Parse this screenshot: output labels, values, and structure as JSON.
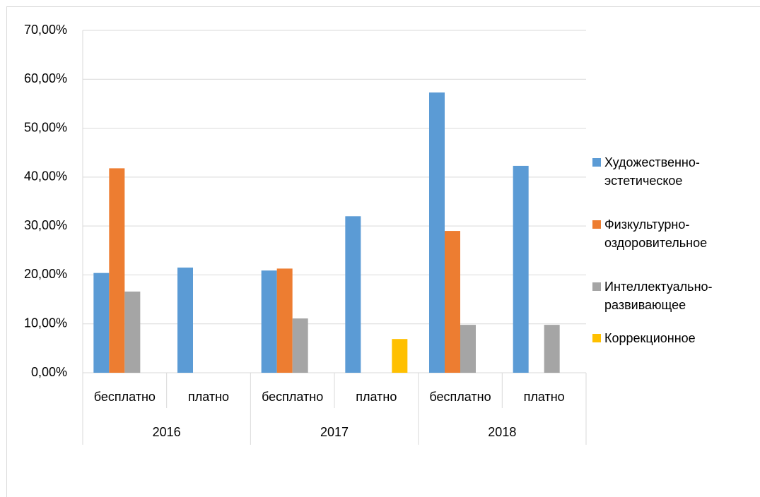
{
  "chart_data": {
    "type": "bar",
    "categories": [
      "бесплатно",
      "платно",
      "бесплатно",
      "платно",
      "бесплатно",
      "платно"
    ],
    "groups": [
      "2016",
      "2017",
      "2018"
    ],
    "series": [
      {
        "name": "Художественно-эстетическое",
        "color": "#5b9bd5",
        "values": [
          20.4,
          21.5,
          20.9,
          32.0,
          57.3,
          42.3
        ]
      },
      {
        "name": "Физкультурно-оздоровительное",
        "color": "#ed7d31",
        "values": [
          41.8,
          null,
          21.3,
          null,
          29.0,
          null
        ]
      },
      {
        "name": "Интеллектуально-развивающее",
        "color": "#a5a5a5",
        "values": [
          16.6,
          null,
          11.1,
          null,
          9.8,
          9.8
        ]
      },
      {
        "name": "Коррекционное",
        "color": "#ffc000",
        "values": [
          null,
          null,
          null,
          6.9,
          null,
          null
        ]
      }
    ],
    "ylim": [
      0,
      70
    ],
    "yticks": [
      {
        "value": 0,
        "label": "0,00%"
      },
      {
        "value": 10,
        "label": "10,00%"
      },
      {
        "value": 20,
        "label": "20,00%"
      },
      {
        "value": 30,
        "label": "30,00%"
      },
      {
        "value": 40,
        "label": "40,00%"
      },
      {
        "value": 50,
        "label": "50,00%"
      },
      {
        "value": 60,
        "label": "60,00%"
      },
      {
        "value": 70,
        "label": "70,00%"
      }
    ],
    "grid": true,
    "legend": "right"
  }
}
